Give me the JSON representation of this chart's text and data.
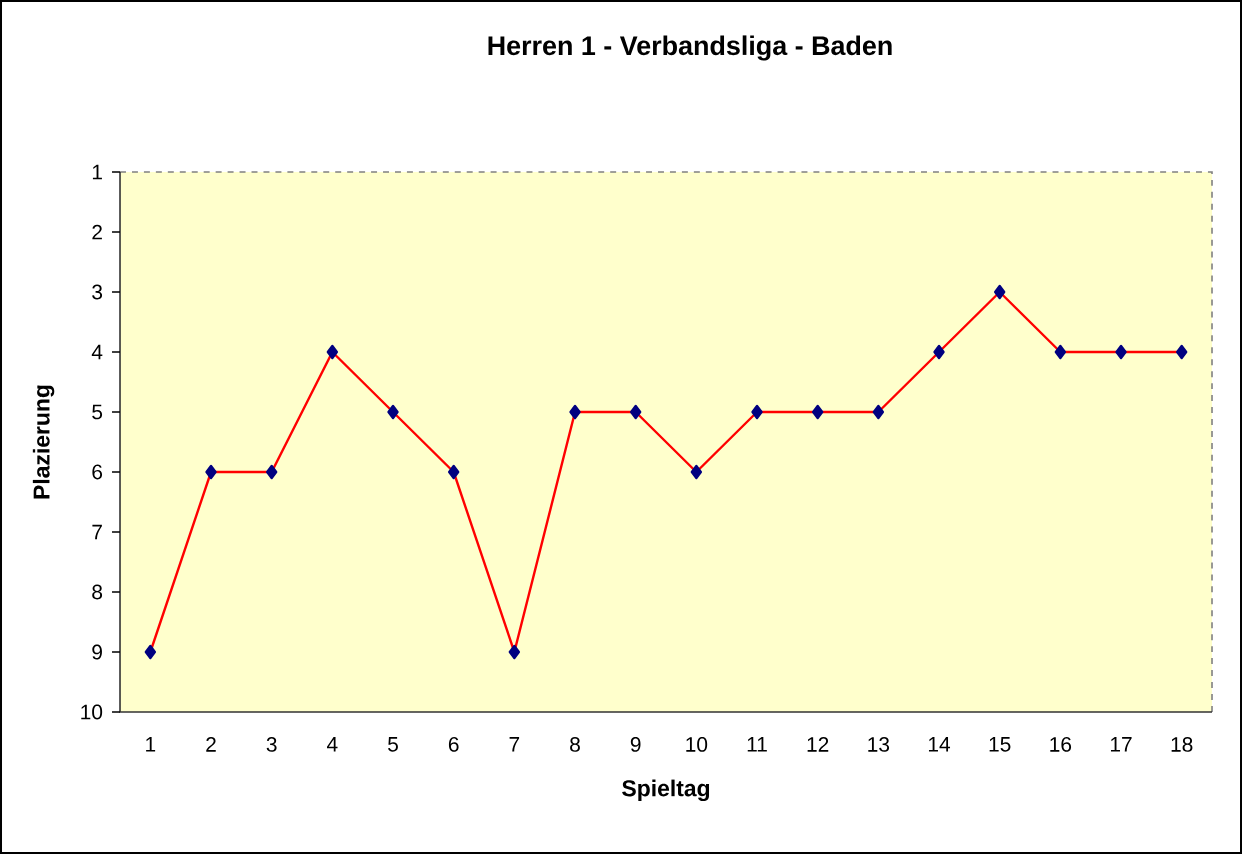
{
  "chart_data": {
    "type": "line",
    "title": "Herren 1 - Verbandsliga - Baden",
    "xlabel": "Spieltag",
    "ylabel": "Plazierung",
    "categories": [
      "1",
      "2",
      "3",
      "4",
      "5",
      "6",
      "7",
      "8",
      "9",
      "10",
      "11",
      "12",
      "13",
      "14",
      "15",
      "16",
      "17",
      "18"
    ],
    "series": [
      {
        "color": "#ff0000",
        "values": [
          9,
          6,
          6,
          4,
          5,
          6,
          9,
          5,
          5,
          6,
          5,
          5,
          5,
          4,
          3,
          4,
          4,
          4
        ]
      }
    ],
    "ylim": [
      10,
      1
    ],
    "yticks": [
      1,
      2,
      3,
      4,
      5,
      6,
      7,
      8,
      9,
      10
    ],
    "marker": "diamond",
    "line_style": "solid"
  }
}
